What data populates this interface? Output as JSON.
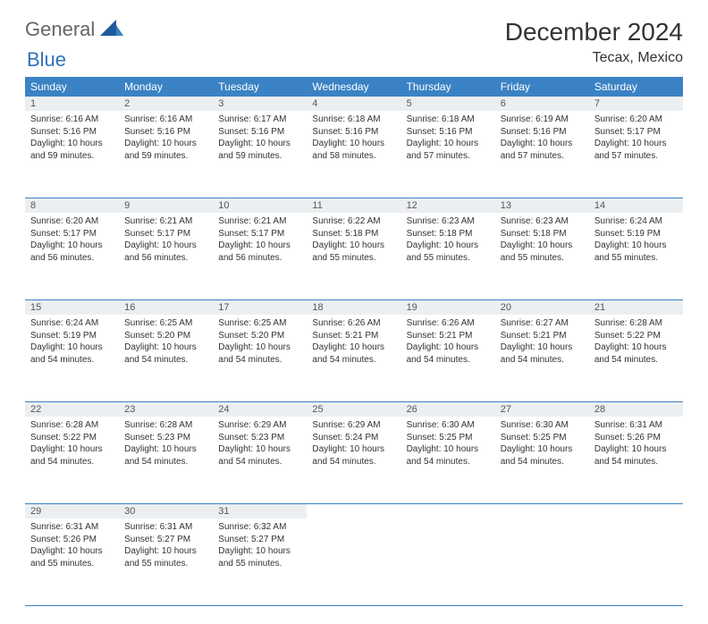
{
  "logo": {
    "text1": "General",
    "text2": "Blue"
  },
  "title": "December 2024",
  "location": "Tecax, Mexico",
  "colors": {
    "header_bg": "#3b82c4",
    "header_text": "#ffffff",
    "daynum_bg": "#eceff1",
    "border": "#3b82c4",
    "logo_gray": "#666666",
    "logo_blue": "#2e72b8"
  },
  "weekday_labels": [
    "Sunday",
    "Monday",
    "Tuesday",
    "Wednesday",
    "Thursday",
    "Friday",
    "Saturday"
  ],
  "days": [
    {
      "n": "1",
      "sr": "6:16 AM",
      "ss": "5:16 PM",
      "dl": "10 hours and 59 minutes."
    },
    {
      "n": "2",
      "sr": "6:16 AM",
      "ss": "5:16 PM",
      "dl": "10 hours and 59 minutes."
    },
    {
      "n": "3",
      "sr": "6:17 AM",
      "ss": "5:16 PM",
      "dl": "10 hours and 59 minutes."
    },
    {
      "n": "4",
      "sr": "6:18 AM",
      "ss": "5:16 PM",
      "dl": "10 hours and 58 minutes."
    },
    {
      "n": "5",
      "sr": "6:18 AM",
      "ss": "5:16 PM",
      "dl": "10 hours and 57 minutes."
    },
    {
      "n": "6",
      "sr": "6:19 AM",
      "ss": "5:16 PM",
      "dl": "10 hours and 57 minutes."
    },
    {
      "n": "7",
      "sr": "6:20 AM",
      "ss": "5:17 PM",
      "dl": "10 hours and 57 minutes."
    },
    {
      "n": "8",
      "sr": "6:20 AM",
      "ss": "5:17 PM",
      "dl": "10 hours and 56 minutes."
    },
    {
      "n": "9",
      "sr": "6:21 AM",
      "ss": "5:17 PM",
      "dl": "10 hours and 56 minutes."
    },
    {
      "n": "10",
      "sr": "6:21 AM",
      "ss": "5:17 PM",
      "dl": "10 hours and 56 minutes."
    },
    {
      "n": "11",
      "sr": "6:22 AM",
      "ss": "5:18 PM",
      "dl": "10 hours and 55 minutes."
    },
    {
      "n": "12",
      "sr": "6:23 AM",
      "ss": "5:18 PM",
      "dl": "10 hours and 55 minutes."
    },
    {
      "n": "13",
      "sr": "6:23 AM",
      "ss": "5:18 PM",
      "dl": "10 hours and 55 minutes."
    },
    {
      "n": "14",
      "sr": "6:24 AM",
      "ss": "5:19 PM",
      "dl": "10 hours and 55 minutes."
    },
    {
      "n": "15",
      "sr": "6:24 AM",
      "ss": "5:19 PM",
      "dl": "10 hours and 54 minutes."
    },
    {
      "n": "16",
      "sr": "6:25 AM",
      "ss": "5:20 PM",
      "dl": "10 hours and 54 minutes."
    },
    {
      "n": "17",
      "sr": "6:25 AM",
      "ss": "5:20 PM",
      "dl": "10 hours and 54 minutes."
    },
    {
      "n": "18",
      "sr": "6:26 AM",
      "ss": "5:21 PM",
      "dl": "10 hours and 54 minutes."
    },
    {
      "n": "19",
      "sr": "6:26 AM",
      "ss": "5:21 PM",
      "dl": "10 hours and 54 minutes."
    },
    {
      "n": "20",
      "sr": "6:27 AM",
      "ss": "5:21 PM",
      "dl": "10 hours and 54 minutes."
    },
    {
      "n": "21",
      "sr": "6:28 AM",
      "ss": "5:22 PM",
      "dl": "10 hours and 54 minutes."
    },
    {
      "n": "22",
      "sr": "6:28 AM",
      "ss": "5:22 PM",
      "dl": "10 hours and 54 minutes."
    },
    {
      "n": "23",
      "sr": "6:28 AM",
      "ss": "5:23 PM",
      "dl": "10 hours and 54 minutes."
    },
    {
      "n": "24",
      "sr": "6:29 AM",
      "ss": "5:23 PM",
      "dl": "10 hours and 54 minutes."
    },
    {
      "n": "25",
      "sr": "6:29 AM",
      "ss": "5:24 PM",
      "dl": "10 hours and 54 minutes."
    },
    {
      "n": "26",
      "sr": "6:30 AM",
      "ss": "5:25 PM",
      "dl": "10 hours and 54 minutes."
    },
    {
      "n": "27",
      "sr": "6:30 AM",
      "ss": "5:25 PM",
      "dl": "10 hours and 54 minutes."
    },
    {
      "n": "28",
      "sr": "6:31 AM",
      "ss": "5:26 PM",
      "dl": "10 hours and 54 minutes."
    },
    {
      "n": "29",
      "sr": "6:31 AM",
      "ss": "5:26 PM",
      "dl": "10 hours and 55 minutes."
    },
    {
      "n": "30",
      "sr": "6:31 AM",
      "ss": "5:27 PM",
      "dl": "10 hours and 55 minutes."
    },
    {
      "n": "31",
      "sr": "6:32 AM",
      "ss": "5:27 PM",
      "dl": "10 hours and 55 minutes."
    }
  ],
  "labels": {
    "sunrise_prefix": "Sunrise: ",
    "sunset_prefix": "Sunset: ",
    "daylight_prefix": "Daylight: "
  },
  "layout": {
    "columns": 7,
    "first_weekday_index": 0,
    "rows": 5
  }
}
